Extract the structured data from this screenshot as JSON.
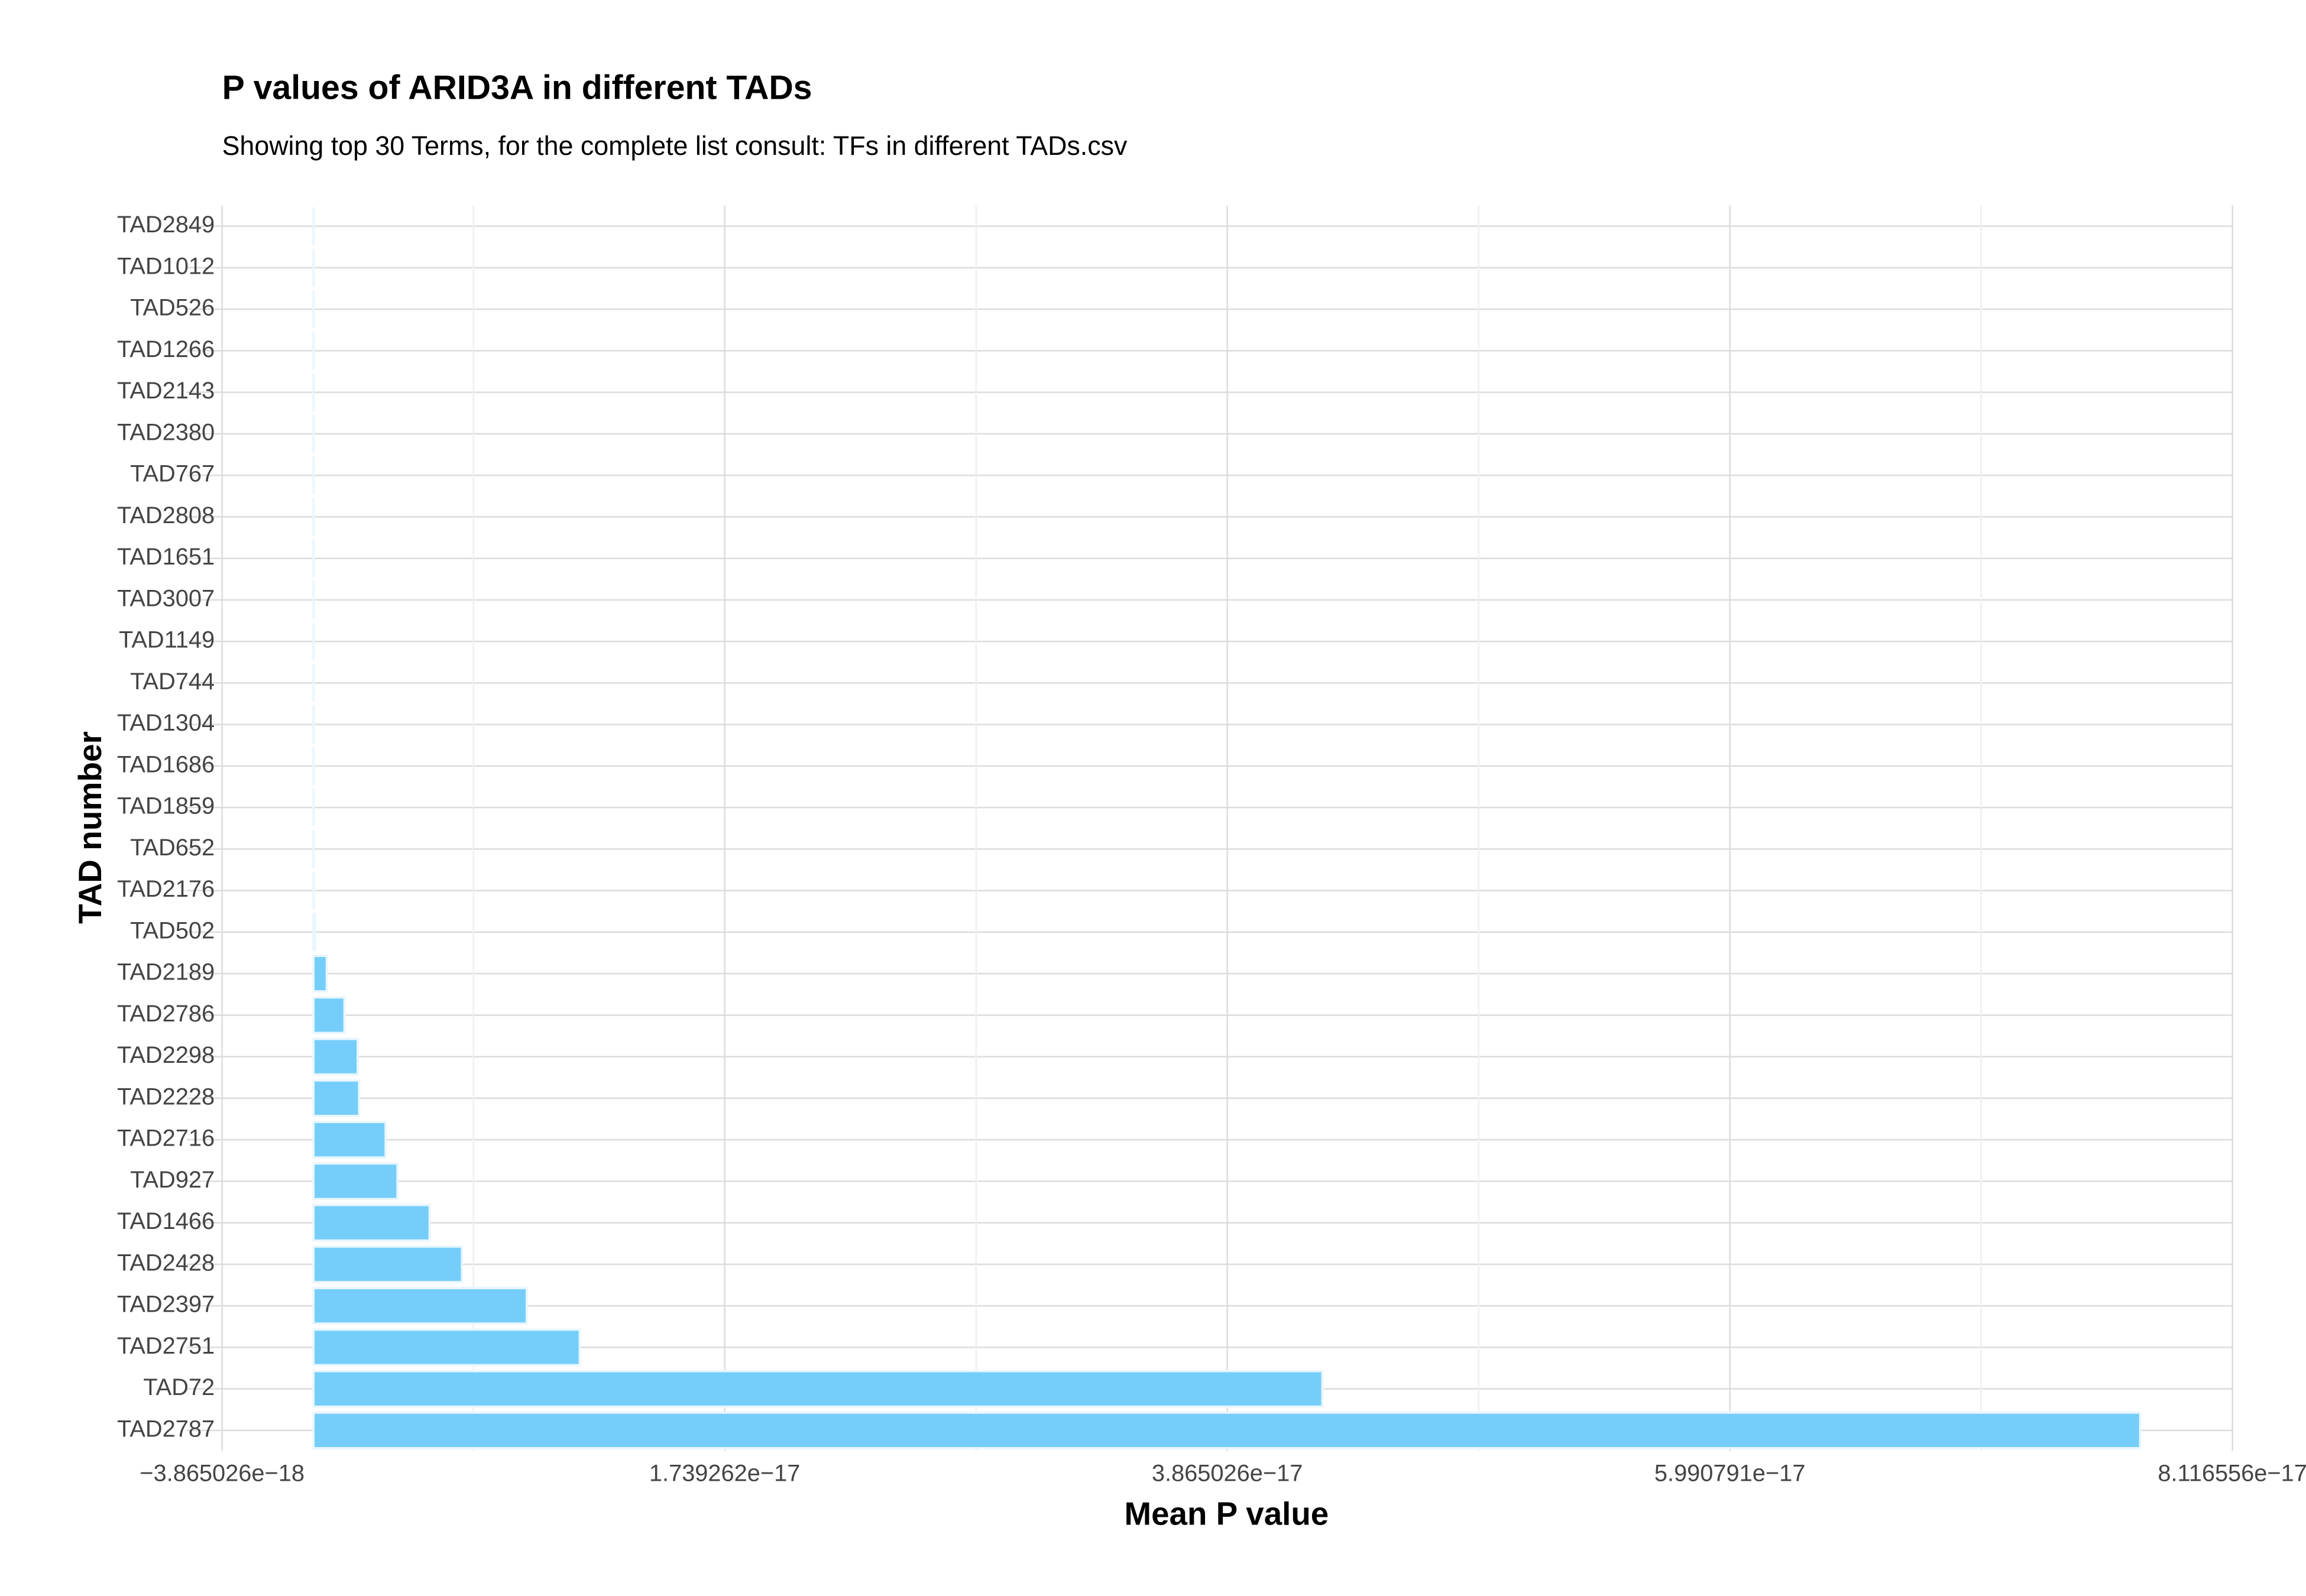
{
  "chart_data": {
    "type": "bar",
    "orientation": "horizontal",
    "title": "P values of ARID3A in different TADs",
    "subtitle": "Showing top 30 Terms, for the complete list consult: TFs in different TADs.csv",
    "x_label": "Mean P value",
    "y_label": "TAD number",
    "categories": [
      "TAD2849",
      "TAD1012",
      "TAD526",
      "TAD1266",
      "TAD2143",
      "TAD2380",
      "TAD767",
      "TAD2808",
      "TAD1651",
      "TAD3007",
      "TAD1149",
      "TAD744",
      "TAD1304",
      "TAD1686",
      "TAD1859",
      "TAD652",
      "TAD2176",
      "TAD502",
      "TAD2189",
      "TAD2786",
      "TAD2298",
      "TAD2228",
      "TAD2716",
      "TAD927",
      "TAD1466",
      "TAD2428",
      "TAD2397",
      "TAD2751",
      "TAD72",
      "TAD2787"
    ],
    "values": [
      1e-22,
      2e-22,
      3e-22,
      4e-22,
      5e-22,
      6e-22,
      7e-22,
      8e-22,
      9e-22,
      1e-21,
      2e-21,
      3e-21,
      4e-21,
      5e-21,
      6e-21,
      8e-21,
      1e-20,
      6e-20,
      5.6e-19,
      1.31e-18,
      1.87e-18,
      1.93e-18,
      3.05e-18,
      3.55e-18,
      4.91e-18,
      6.28e-18,
      9.02e-18,
      1.126e-17,
      4.267e-17,
      7.726e-17
    ],
    "color": "#75cefa",
    "xlim": [
      -5.36e-18,
      8.116556e-17
    ],
    "xticks": [
      {
        "value": -3.865026e-18,
        "label": "−3.865026e−18"
      },
      {
        "value": 1.739262e-17,
        "label": "1.739262e−17"
      },
      {
        "value": 3.865026e-17,
        "label": "3.865026e−17"
      },
      {
        "value": 5.990791e-17,
        "label": "5.990791e−17"
      },
      {
        "value": 8.116556e-17,
        "label": "8.116556e−17"
      }
    ],
    "grid": true
  }
}
